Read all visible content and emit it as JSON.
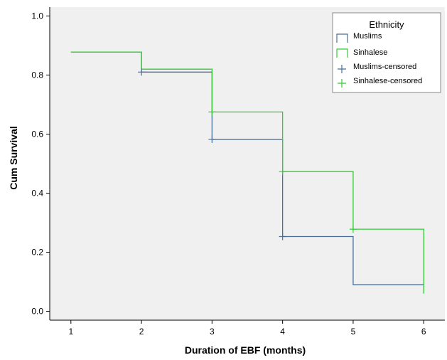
{
  "chart_data": {
    "type": "line",
    "title": "",
    "xlabel": "Duration of EBF (months)",
    "ylabel": "Cum Survival",
    "xlim": [
      0.7,
      6.3
    ],
    "ylim": [
      -0.03,
      1.03
    ],
    "xticks": [
      1,
      2,
      3,
      4,
      5,
      6
    ],
    "yticks": [
      0.0,
      0.2,
      0.4,
      0.6,
      0.8,
      1.0
    ],
    "ytick_labels": [
      "0.0",
      "0.2",
      "0.4",
      "0.6",
      "0.8",
      "1.0"
    ],
    "grid": false,
    "plot_background": "#f0f0f0",
    "legend": {
      "title": "Ethnicity",
      "position": "top-right",
      "entries": [
        "Muslims",
        "Sinhalese",
        "Muslims-censored",
        "Sinhalese-censored"
      ]
    },
    "series": [
      {
        "name": "Muslims",
        "color": "#4a6f9a",
        "step": "post",
        "x": [
          1,
          2,
          3,
          4,
          5,
          6
        ],
        "y": [
          0.878,
          0.81,
          0.582,
          0.253,
          0.09,
          0.09
        ]
      },
      {
        "name": "Sinhalese",
        "color": "#33cc33",
        "step": "post",
        "x": [
          1,
          2,
          3,
          4,
          5,
          6
        ],
        "y": [
          0.878,
          0.82,
          0.675,
          0.473,
          0.278,
          0.06
        ]
      }
    ],
    "censored": [
      {
        "name": "Muslims-censored",
        "color": "#4a6f9a",
        "x": [
          2,
          3,
          4
        ],
        "y": [
          0.81,
          0.582,
          0.253
        ]
      },
      {
        "name": "Sinhalese-censored",
        "color": "#33cc33",
        "x": [
          3,
          4,
          5
        ],
        "y": [
          0.675,
          0.473,
          0.278
        ]
      }
    ]
  }
}
